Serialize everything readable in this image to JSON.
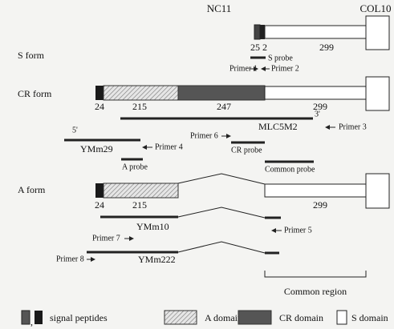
{
  "header": {
    "left": "NC11",
    "right": "COL10"
  },
  "s_form": {
    "label": "S form",
    "numbers": [
      "25",
      "2",
      "299"
    ],
    "probe": "S probe",
    "primers": [
      "Primer 1",
      "Primer 2"
    ]
  },
  "cr_form": {
    "label": "CR form",
    "numbers": [
      "24",
      "215",
      "247",
      "299"
    ],
    "end_3": "3'",
    "end_5": "5'",
    "clones": [
      "MLC5M2",
      "YMm29"
    ],
    "primers": [
      "Primer 3",
      "Primer 4",
      "Primer 6"
    ],
    "probes": [
      "CR probe",
      "A probe",
      "Common probe"
    ]
  },
  "a_form": {
    "label": "A form",
    "numbers": [
      "24",
      "215",
      "299"
    ],
    "clones": [
      "YMm10",
      "YMm222"
    ],
    "primers": [
      "Primer 5",
      "Primer 7",
      "Primer 8"
    ],
    "region": "Common region"
  },
  "legend": {
    "items": [
      "signal peptides",
      "A domain",
      "CR domain",
      "S domain"
    ],
    "separator": ","
  }
}
